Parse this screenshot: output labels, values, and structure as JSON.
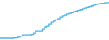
{
  "chart_data": {
    "type": "line",
    "line_style": "step",
    "values": [
      10,
      10,
      10,
      10,
      10,
      10,
      11,
      11,
      13,
      16,
      20,
      20,
      20,
      20,
      21,
      25,
      30,
      30,
      30,
      35,
      42,
      45,
      50,
      55,
      58,
      62,
      65,
      70,
      73,
      75,
      78,
      80,
      82,
      85,
      87,
      89,
      91,
      93,
      95,
      97,
      99,
      101,
      103,
      105,
      107,
      108,
      109,
      110,
      111,
      112
    ],
    "color": "#4db3e6",
    "ylim": [
      5,
      118
    ],
    "tick_labels": false,
    "grid": false
  }
}
